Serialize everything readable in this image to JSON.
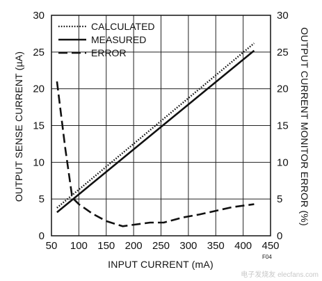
{
  "chart_data": {
    "type": "line",
    "title": "",
    "xlabel": "INPUT CURRENT (mA)",
    "ylabel": "OUTPUT SENSE CURRENT (µA)",
    "y2label": "OUTPUT CURRENT MONITOR ERROR (%)",
    "xlim": [
      50,
      450
    ],
    "ylim": [
      0,
      30
    ],
    "y2lim": [
      0,
      30
    ],
    "xticks": [
      50,
      100,
      150,
      200,
      250,
      300,
      350,
      400,
      450
    ],
    "yticks": [
      0,
      5,
      10,
      15,
      20,
      25,
      30
    ],
    "y2ticks": [
      0,
      5,
      10,
      15,
      20,
      25,
      30
    ],
    "grid": true,
    "legend_position": "top-left",
    "series": [
      {
        "name": "CALCULATED",
        "style": "dotted",
        "axis": "left",
        "x": [
          60,
          420
        ],
        "y": [
          3.8,
          26.2
        ]
      },
      {
        "name": "MEASURED",
        "style": "solid",
        "axis": "left",
        "x": [
          60,
          420
        ],
        "y": [
          3.2,
          25.2
        ]
      },
      {
        "name": "ERROR",
        "style": "dashed",
        "axis": "right",
        "x": [
          60,
          75,
          88,
          100,
          125,
          150,
          180,
          200,
          230,
          255,
          290,
          320,
          350,
          380,
          400,
          420
        ],
        "y": [
          21,
          12,
          5.2,
          4.3,
          3,
          2,
          1.3,
          1.5,
          1.8,
          1.8,
          2.5,
          2.9,
          3.4,
          3.9,
          4.1,
          4.3
        ]
      }
    ],
    "annotation": "F04"
  },
  "watermark": "电子发烧友 elecfans.com"
}
